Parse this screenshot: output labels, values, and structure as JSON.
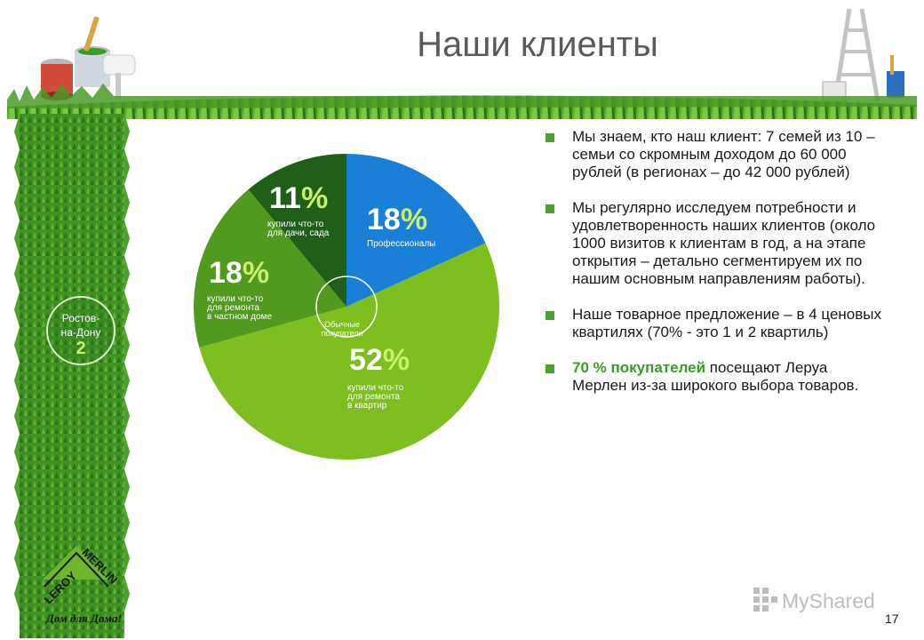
{
  "slide": {
    "title": "Наши клиенты",
    "page_number": "17",
    "watermark": "MyShared"
  },
  "city": {
    "name": "Ростов-на-Дону",
    "line1": "Ростов-",
    "line2": "на-Дону",
    "number": "2"
  },
  "pie": {
    "center_label_line1": "Обычные",
    "center_label_line2": "покупатели",
    "segments": [
      {
        "value": 18,
        "num": "18",
        "pct": "%",
        "label": [
          "Профессионалы"
        ],
        "color": "#1a7fd6"
      },
      {
        "value": 52,
        "num": "52",
        "pct": "%",
        "label": [
          "купили что-то",
          "для ремонта",
          "в квартир"
        ],
        "color": "#7cbf1e"
      },
      {
        "value": 18,
        "num": "18",
        "pct": "%",
        "label": [
          "купили что-то",
          "для ремонта",
          "в частном доме"
        ],
        "color": "#4f9a1f"
      },
      {
        "value": 11,
        "num": "11",
        "pct": "%",
        "label": [
          "купили что-то",
          "для дачи, сада"
        ],
        "color": "#1f5f17"
      }
    ]
  },
  "bullets": [
    {
      "text": "Мы знаем, кто наш клиент: 7 семей из 10 – семьи со скромным доходом до 60 000 рублей (в регионах – до 42 000 рублей)"
    },
    {
      "text": "Мы регулярно исследуем потребности и удовлетворенность наших клиентов (около 1000 визитов к клиентам в год, а на этапе открытия – детально сегментируем их по нашим основным направлениям работы)."
    },
    {
      "text": "Наше товарное предложение – в 4 ценовых квартилях (70% - это 1 и 2 квартиль)"
    },
    {
      "highlight": "70 % покупателей",
      "text": " посещают Леруа Мерлен из-за широкого выбора товаров."
    }
  ],
  "logo": {
    "brand_line1": "LEROY",
    "brand_line2": "MERLIN",
    "tagline": "Дом для Дома!"
  },
  "colors": {
    "green": "#4aa030",
    "lime": "#c9f06b",
    "blue": "#1a7fd6"
  },
  "icons": [
    "paint-cans-icon",
    "ladder-icon",
    "leroy-merlin-logo",
    "myshared-logo-icon"
  ]
}
